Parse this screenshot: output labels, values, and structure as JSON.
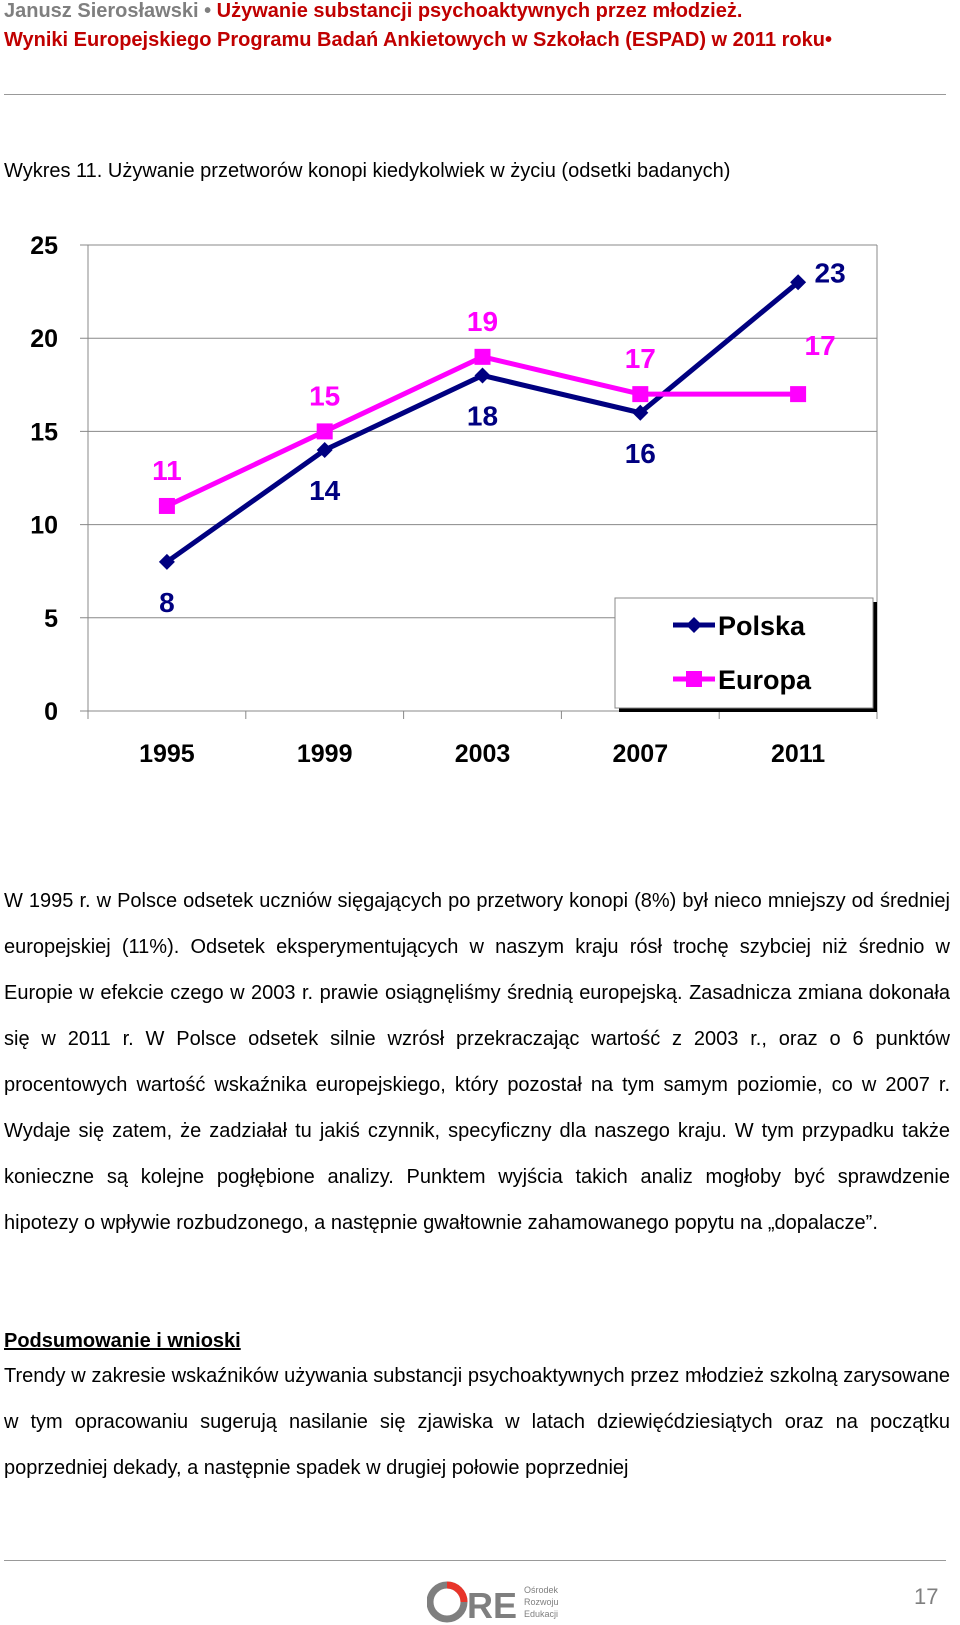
{
  "header": {
    "author": "Janusz Sierosławski",
    "bullet": " • ",
    "title_line1": "Używanie substancji psychoaktywnych przez młodzież.",
    "title_line2": "Wyniki Europejskiego Programu Badań Ankietowych w Szkołach (ESPAD) w 2011 roku",
    "trailing_bullet": "•"
  },
  "caption": "Wykres 11. Używanie przetworów konopi kiedykolwiek w życiu (odsetki badanych)",
  "chart_data": {
    "type": "line",
    "categories": [
      "1995",
      "1999",
      "2003",
      "2007",
      "2011"
    ],
    "series": [
      {
        "name": "Polska",
        "values": [
          8,
          14,
          18,
          16,
          23
        ],
        "color": "#000080",
        "marker": "diamond"
      },
      {
        "name": "Europa",
        "values": [
          11,
          15,
          19,
          17,
          17
        ],
        "color": "#ff00ff",
        "marker": "square"
      }
    ],
    "y_ticks": [
      "0",
      "5",
      "10",
      "15",
      "20",
      "25"
    ],
    "ylim": [
      0,
      25
    ],
    "grid": true,
    "legend_position": "bottom-right"
  },
  "paragraph1": "W 1995 r. w Polsce odsetek uczniów sięgających po przetwory konopi (8%) był nieco mniejszy od średniej europejskiej (11%). Odsetek eksperymentujących w naszym kraju rósł trochę szybciej niż średnio w Europie w efekcie czego w 2003 r. prawie osiągnęliśmy średnią europejską. Zasadnicza zmiana dokonała się w 2011 r. W Polsce odsetek silnie wzrósł przekraczając wartość z 2003 r., oraz o 6 punktów procentowych wartość wskaźnika europejskiego, który pozostał na tym samym poziomie, co w 2007 r. Wydaje się zatem, że zadziałał tu jakiś czynnik, specyficzny dla naszego kraju. W tym przypadku także konieczne są kolejne pogłębione analizy. Punktem wyjścia takich analiz mogłoby być sprawdzenie hipotezy o wpływie rozbudzonego, a następnie gwałtownie zahamowanego popytu na „dopalacze”.",
  "section_title": "Podsumowanie i wnioski",
  "paragraph2": "Trendy w zakresie wskaźników używania substancji psychoaktywnych przez młodzież szkolną zarysowane w tym opracowaniu sugerują nasilanie się zjawiska w latach dziewięćdziesiątych oraz na początku poprzedniej dekady, a następnie spadek w drugiej połowie poprzedniej",
  "footer": {
    "logo_text": "ORE",
    "logo_sub": [
      "Ośrodek",
      "Rozwoju",
      "Edukacji"
    ],
    "page_number": "17"
  }
}
